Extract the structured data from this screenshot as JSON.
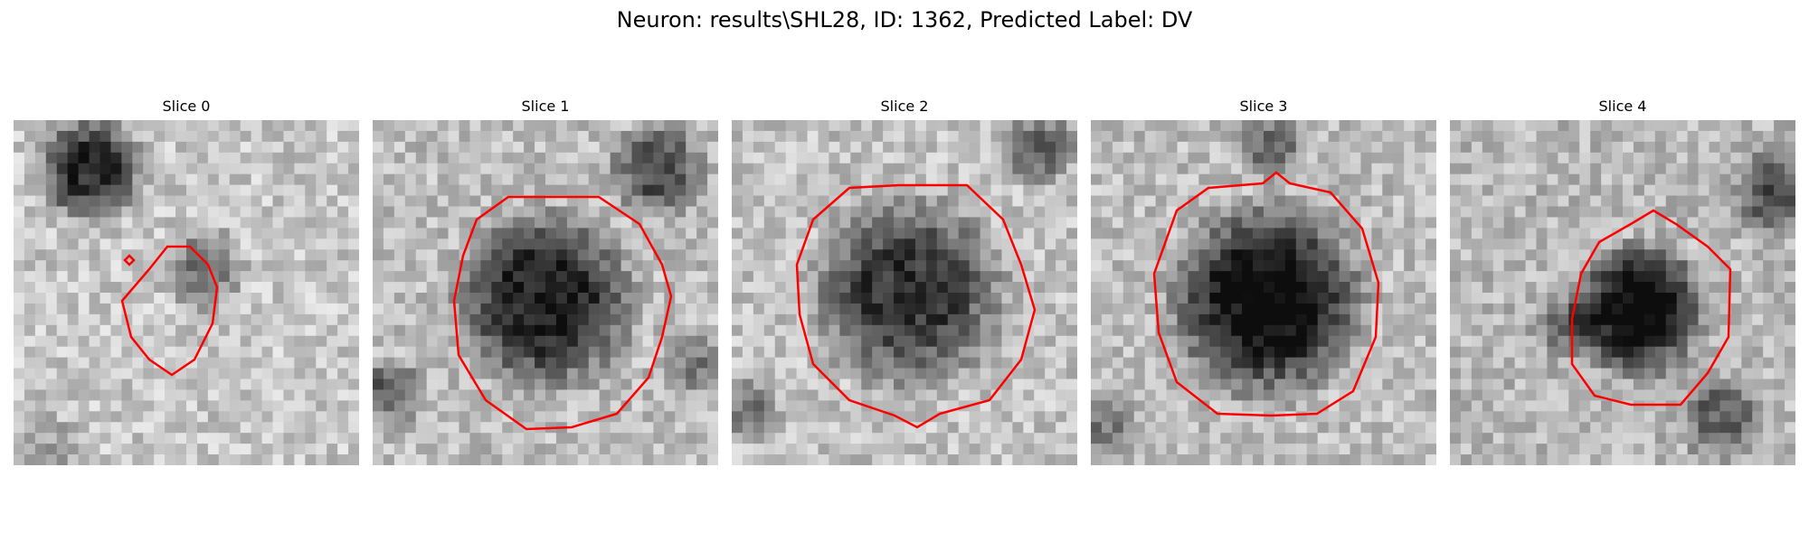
{
  "figure": {
    "title": "Neuron: results\\SHL28, ID: 1362, Predicted Label: DV"
  },
  "panels": [
    {
      "title": "Slice 0"
    },
    {
      "title": "Slice 1"
    },
    {
      "title": "Slice 2"
    },
    {
      "title": "Slice 3"
    },
    {
      "title": "Slice 4"
    }
  ],
  "colors": {
    "contour": "#ff0000",
    "background": "#ffffff"
  }
}
